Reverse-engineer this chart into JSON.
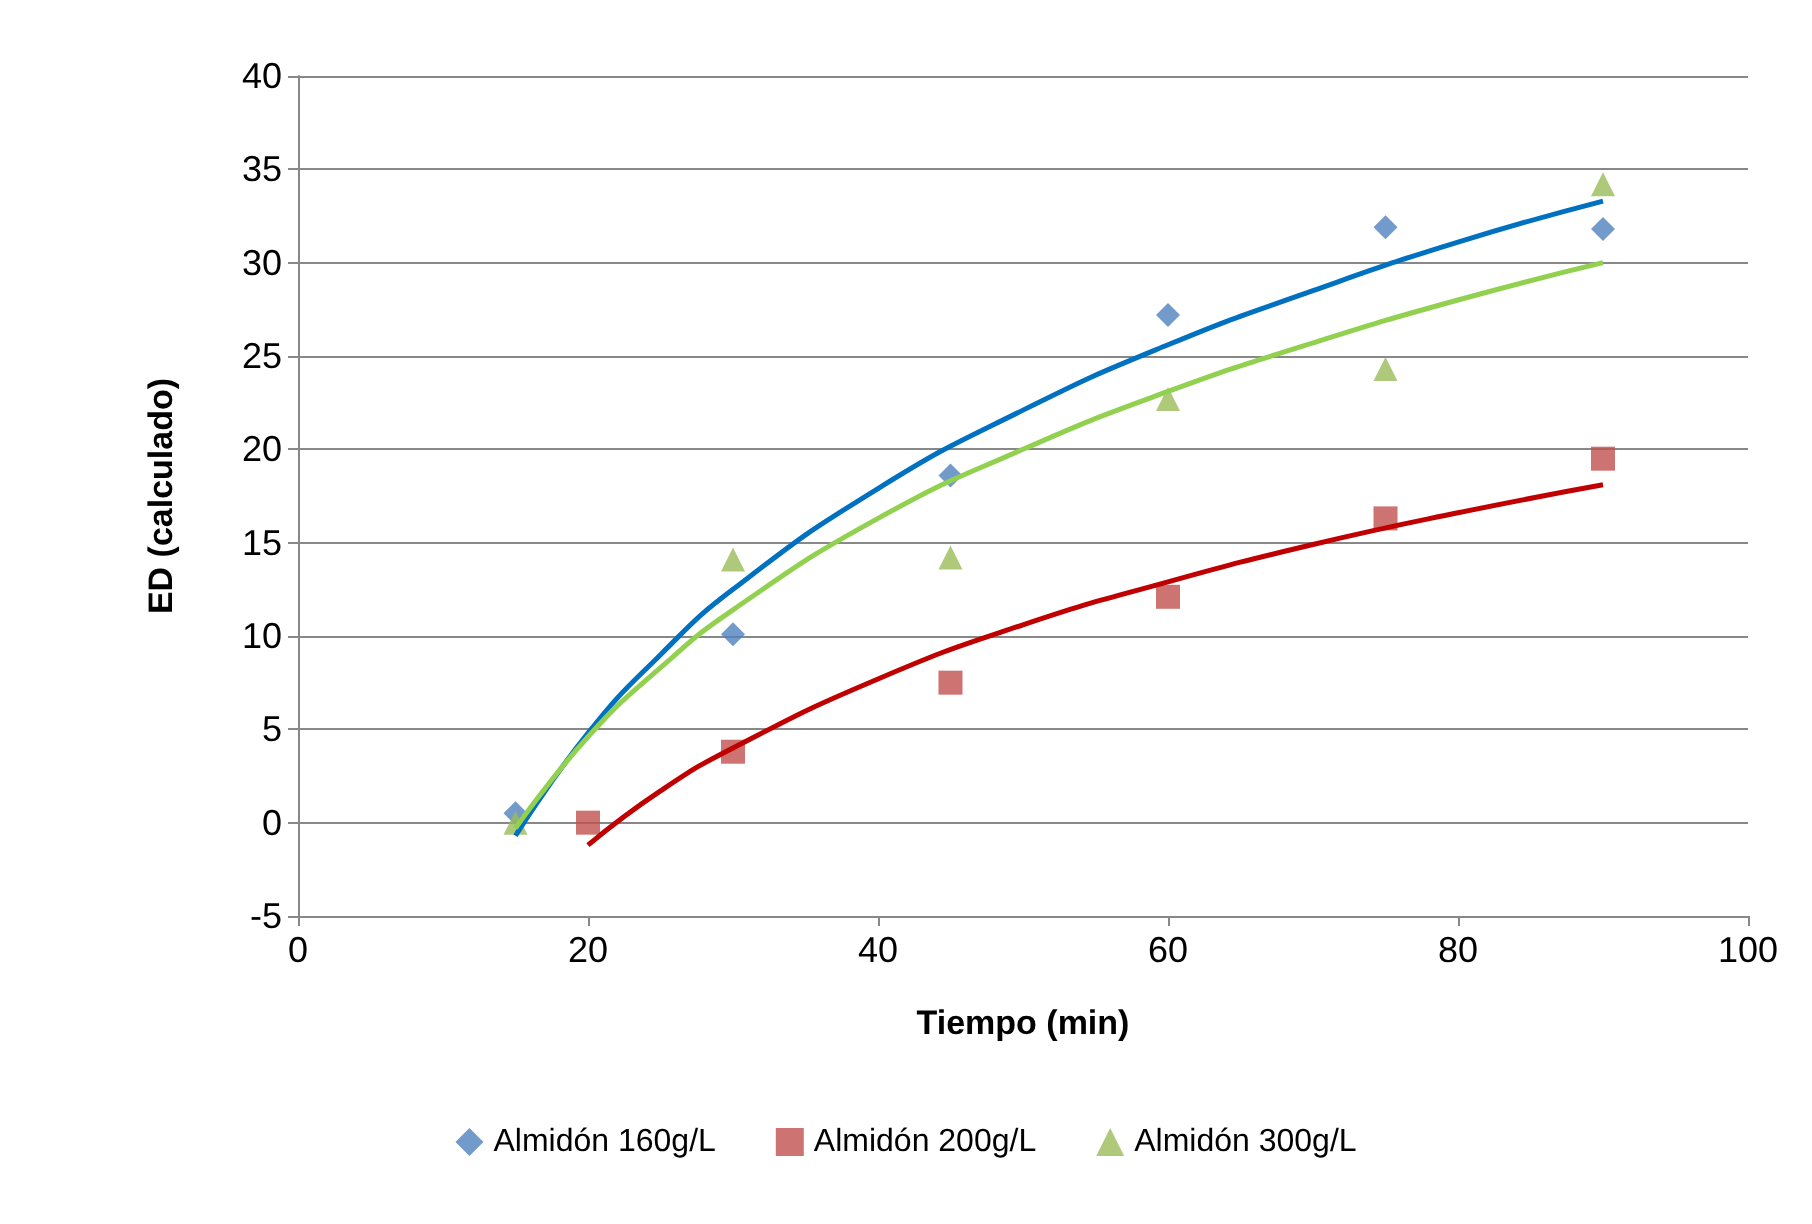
{
  "chart_data": {
    "type": "scatter",
    "xlabel": "Tiempo (min)",
    "ylabel": "ED (calculado)",
    "xlim": [
      0,
      100
    ],
    "xticks": [
      0,
      20,
      40,
      60,
      80,
      100
    ],
    "ylim": [
      -5,
      40
    ],
    "yticks": [
      -5,
      0,
      5,
      10,
      15,
      20,
      25,
      30,
      35,
      40
    ],
    "grid": "y",
    "legend": "bottom",
    "series": [
      {
        "name": "Almidón 160g/L",
        "color": "#4f81bd",
        "marker": "diamond",
        "x": [
          15,
          30,
          45,
          60,
          75,
          90
        ],
        "values": [
          0.5,
          10.1,
          18.6,
          27.2,
          31.9,
          31.8
        ]
      },
      {
        "name": "Almidón 200g/L",
        "color": "#c0504d",
        "marker": "square",
        "x": [
          20,
          30,
          45,
          60,
          75,
          90
        ],
        "values": [
          0,
          3.8,
          7.5,
          12.1,
          16.3,
          19.5
        ]
      },
      {
        "name": "Almidón 300g/L",
        "color": "#9bbb59",
        "marker": "triangle",
        "x": [
          15,
          30,
          45,
          60,
          75,
          90
        ],
        "values": [
          0,
          14.1,
          14.2,
          22.7,
          24.3,
          34.2
        ]
      },
      {
        "type": "line",
        "color": "#0070c0",
        "marker": "none",
        "x": [
          15,
          20,
          25,
          30,
          40,
          50,
          60,
          70,
          80,
          90
        ],
        "values": [
          -0.7,
          4.8,
          9.0,
          12.5,
          17.9,
          22.1,
          25.6,
          28.5,
          31.1,
          33.3
        ]
      },
      {
        "type": "line",
        "color": "#92d050",
        "marker": "none",
        "x": [
          15,
          20,
          25,
          30,
          40,
          50,
          60,
          70,
          80,
          90
        ],
        "values": [
          -0.3,
          4.6,
          8.3,
          11.4,
          16.3,
          20.0,
          23.1,
          25.7,
          28.0,
          30.0
        ]
      },
      {
        "type": "line",
        "color": "#c00000",
        "marker": "none",
        "x": [
          20,
          25,
          30,
          40,
          50,
          60,
          70,
          80,
          90
        ],
        "values": [
          -1.2,
          1.7,
          4.0,
          7.7,
          10.6,
          12.9,
          14.9,
          16.6,
          18.1
        ]
      }
    ]
  }
}
